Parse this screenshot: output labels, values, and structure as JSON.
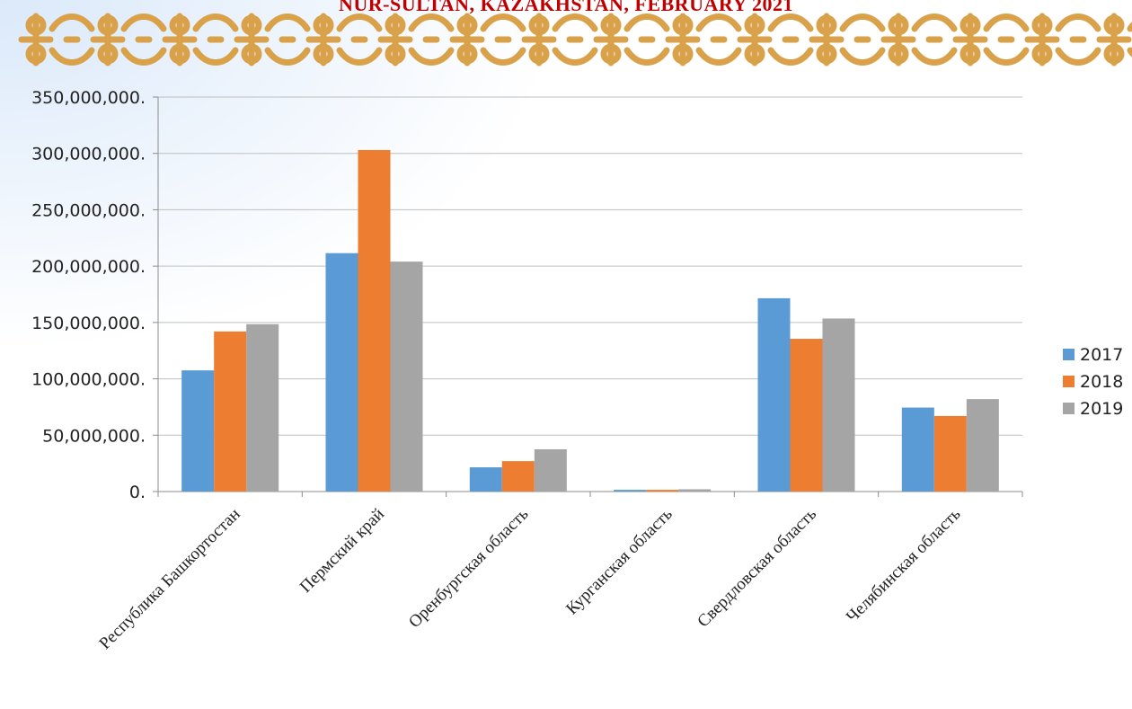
{
  "banner": {
    "title": "NUR-SULTAN, KAZAKHSTAN, FEBRUARY 2021",
    "ornament_color": "#d9a24a"
  },
  "chart_data": {
    "type": "bar",
    "categories": [
      "Республика Башкортостан",
      "Пермский край",
      "Оренбургская область",
      "Курганская область",
      "Свердловская область",
      "Челябинская область"
    ],
    "series": [
      {
        "name": "2017",
        "color": "#5b9bd5",
        "values": [
          107500000,
          211500000,
          21500000,
          1500000,
          171500000,
          74500000
        ]
      },
      {
        "name": "2018",
        "color": "#ed7d31",
        "values": [
          142000000,
          303000000,
          27000000,
          1500000,
          135500000,
          67000000
        ]
      },
      {
        "name": "2019",
        "color": "#a5a5a5",
        "values": [
          148500000,
          204000000,
          37500000,
          2000000,
          153500000,
          82000000
        ]
      }
    ],
    "yticks": [
      "0.",
      "50,000,000.",
      "100,000,000.",
      "150,000,000.",
      "200,000,000.",
      "250,000,000.",
      "300,000,000.",
      "350,000,000."
    ],
    "ylim": [
      0,
      350000000
    ],
    "grid": true,
    "legend_position": "right"
  }
}
